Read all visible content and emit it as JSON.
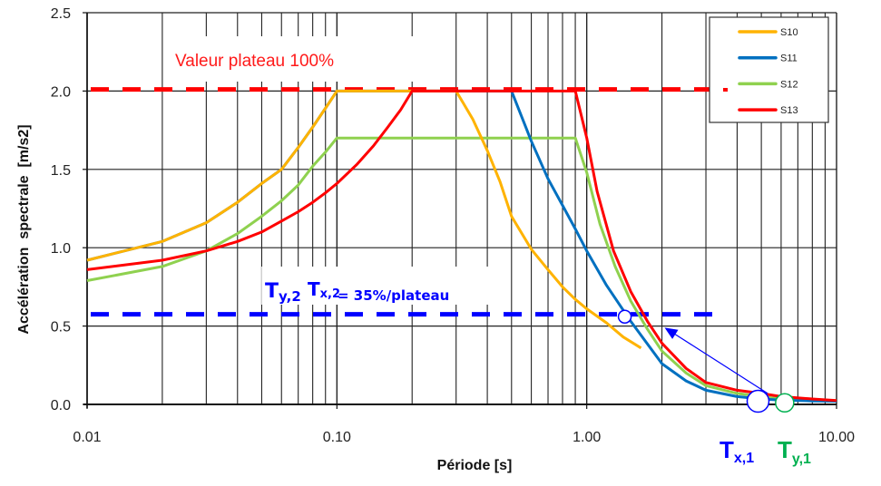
{
  "chart_data": {
    "type": "line",
    "title": "",
    "xlabel": "Période [s]",
    "ylabel": "Accélération  spectrale  [m/s2]",
    "xscale": "log",
    "xlim": [
      0.01,
      10.0
    ],
    "ylim": [
      0.0,
      2.5
    ],
    "grid": true,
    "x_ticks": [
      0.01,
      0.1,
      1.0,
      10.0
    ],
    "x_tick_labels": [
      "0.01",
      "0.10",
      "1.00",
      "10.00"
    ],
    "y_ticks": [
      0.0,
      0.5,
      1.0,
      1.5,
      2.0,
      2.5
    ],
    "y_tick_labels": [
      "0.0",
      "0.5",
      "1.0",
      "1.5",
      "2.0",
      "2.5"
    ],
    "legend_position": "top-right",
    "series": [
      {
        "name": "S10",
        "color": "#ffb300",
        "x": [
          0.01,
          0.02,
          0.03,
          0.04,
          0.05,
          0.06,
          0.07,
          0.08,
          0.09,
          0.1,
          0.2,
          0.3,
          0.35,
          0.4,
          0.45,
          0.5,
          0.6,
          0.7,
          0.8,
          0.9,
          1.0,
          1.2,
          1.4,
          1.65
        ],
        "y": [
          0.92,
          1.04,
          1.16,
          1.29,
          1.41,
          1.5,
          1.64,
          1.77,
          1.89,
          2.0,
          2.0,
          2.0,
          1.82,
          1.62,
          1.42,
          1.2,
          0.99,
          0.86,
          0.75,
          0.67,
          0.61,
          0.52,
          0.43,
          0.36
        ]
      },
      {
        "name": "S11",
        "color": "#0070c0",
        "x": [
          0.01,
          0.02,
          0.03,
          0.04,
          0.05,
          0.06,
          0.07,
          0.08,
          0.09,
          0.1,
          0.2,
          0.3,
          0.4,
          0.5,
          0.6,
          0.7,
          0.8,
          0.9,
          1.0,
          1.2,
          1.5,
          2.0,
          2.5,
          3.0,
          4.0,
          5.0,
          6.0,
          8.0,
          10.0
        ],
        "y": [
          0.92,
          1.04,
          1.16,
          1.29,
          1.41,
          1.5,
          1.64,
          1.77,
          1.89,
          2.0,
          2.0,
          2.0,
          2.0,
          2.0,
          1.68,
          1.44,
          1.27,
          1.12,
          0.98,
          0.76,
          0.53,
          0.26,
          0.15,
          0.09,
          0.05,
          0.035,
          0.027,
          0.022,
          0.02
        ]
      },
      {
        "name": "S12",
        "color": "#8fd14f",
        "x": [
          0.01,
          0.02,
          0.03,
          0.04,
          0.05,
          0.06,
          0.07,
          0.08,
          0.09,
          0.1,
          0.2,
          0.5,
          0.9,
          1.0,
          1.13,
          1.3,
          1.5,
          1.75,
          2.0,
          2.5,
          3.0,
          4.0,
          5.0,
          6.0,
          8.0,
          10.0
        ],
        "y": [
          0.79,
          0.88,
          0.98,
          1.09,
          1.2,
          1.3,
          1.4,
          1.52,
          1.61,
          1.7,
          1.7,
          1.7,
          1.7,
          1.48,
          1.15,
          0.88,
          0.66,
          0.48,
          0.34,
          0.2,
          0.12,
          0.07,
          0.05,
          0.035,
          0.028,
          0.025
        ]
      },
      {
        "name": "S13",
        "color": "#ff0000",
        "x": [
          0.01,
          0.02,
          0.03,
          0.04,
          0.05,
          0.06,
          0.07,
          0.08,
          0.09,
          0.1,
          0.12,
          0.14,
          0.16,
          0.18,
          0.2,
          0.5,
          0.9,
          1.0,
          1.1,
          1.28,
          1.5,
          1.75,
          2.0,
          2.5,
          3.0,
          4.0,
          5.0,
          6.0,
          8.0,
          10.0
        ],
        "y": [
          0.86,
          0.92,
          0.98,
          1.04,
          1.1,
          1.17,
          1.23,
          1.29,
          1.35,
          1.41,
          1.53,
          1.65,
          1.77,
          1.88,
          2.0,
          2.0,
          2.0,
          1.7,
          1.36,
          0.98,
          0.72,
          0.53,
          0.39,
          0.23,
          0.14,
          0.09,
          0.07,
          0.05,
          0.035,
          0.025
        ]
      }
    ],
    "reference_lines": [
      {
        "name": "plateau-100",
        "y": 2.01,
        "color": "#ff0000",
        "style": "dashed",
        "x_end": 3.3
      },
      {
        "name": "plateau-35",
        "y": 0.575,
        "color": "#0000ff",
        "style": "dashed",
        "x_end": 3.4
      }
    ],
    "markers": [
      {
        "name": "tx2-marker",
        "x": 1.42,
        "y": 0.56,
        "color": "#0000ff",
        "size": "small"
      },
      {
        "name": "tx1-marker",
        "x": 4.85,
        "y": 0.02,
        "color": "#0000ff",
        "size": "large"
      },
      {
        "name": "ty1-marker",
        "x": 6.2,
        "y": 0.01,
        "color": "#00b050",
        "size": "medium"
      }
    ],
    "arrow": {
      "from": [
        5.3,
        0.07
      ],
      "to": [
        2.05,
        0.49
      ],
      "color": "#0000ff"
    },
    "annotations": {
      "plateau_label": "Valeur plateau 100%",
      "ty2_main": "T",
      "ty2_sub": "y,2",
      "tx2_main": "T",
      "tx2_sub": "x,2",
      "ratio_text": "= 35%/plateau",
      "tx1_main": "T",
      "tx1_sub": "x,1",
      "ty1_main": "T",
      "ty1_sub": "y,1"
    },
    "annotation_colors": {
      "plateau": "#ff1a1a",
      "blue": "#0000ff",
      "green": "#00b050"
    }
  }
}
